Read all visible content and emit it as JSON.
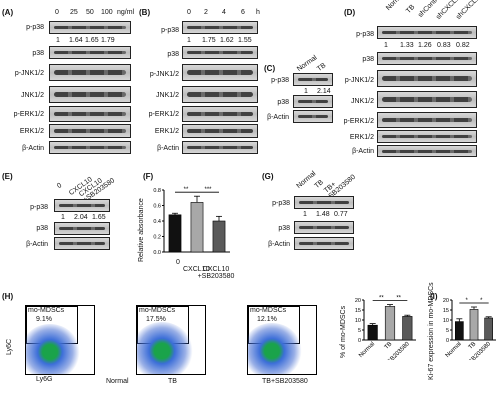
{
  "panels": {
    "A": {
      "label": "(A)",
      "columns": [
        "0",
        "25",
        "50",
        "100"
      ],
      "unit": "ng/ml",
      "rows": [
        "p-p38",
        "p38",
        "p-JNK1/2",
        "JNK1/2",
        "p-ERK1/2",
        "ERK1/2",
        "β-Actin"
      ],
      "ratios": [
        "1",
        "1.64",
        "1.65",
        "1.79"
      ]
    },
    "B": {
      "label": "(B)",
      "columns": [
        "0",
        "2",
        "4",
        "6"
      ],
      "unit": "h",
      "rows": [
        "p-p38",
        "p38",
        "p-JNK1/2",
        "JNK1/2",
        "p-ERK1/2",
        "ERK1/2",
        "β-Actin"
      ],
      "ratios": [
        "1",
        "1.75",
        "1.62",
        "1.55"
      ]
    },
    "C": {
      "label": "(C)",
      "columns": [
        "Normal",
        "TB"
      ],
      "rows": [
        "p-p38",
        "p38",
        "β-Actin"
      ],
      "ratios": [
        "1",
        "2.14"
      ]
    },
    "D": {
      "label": "(D)",
      "columns": [
        "Normal",
        "TB",
        "shControl",
        "shCXCL10-1",
        "shCXCL10-2"
      ],
      "rows": [
        "p-p38",
        "p38",
        "p-JNK1/2",
        "JNK1/2",
        "p-ERK1/2",
        "ERK1/2",
        "β-Actin"
      ],
      "ratios": [
        "1",
        "1.33",
        "1.26",
        "0.83",
        "0.82"
      ]
    },
    "E": {
      "label": "(E)",
      "columns": [
        "0",
        "CXCL10",
        "CXCL10 +SB203580"
      ],
      "rows": [
        "p-p38",
        "p38",
        "β-Actin"
      ],
      "ratios": [
        "1",
        "2.04",
        "1.65"
      ]
    },
    "F": {
      "label": "(F)",
      "ylabel": "Relative absorbance",
      "sig": [
        "**",
        "***"
      ]
    },
    "G": {
      "label": "(G)",
      "columns": [
        "Normal",
        "TB",
        "TB+ SB203580"
      ],
      "rows": [
        "p-p38",
        "p38",
        "β-Actin"
      ],
      "ratios": [
        "1",
        "1.48",
        "0.77"
      ]
    },
    "H": {
      "label": "(H)",
      "gate_name": "mo-MDSCs",
      "plots": [
        {
          "name": "Normal",
          "pct": "9.1%"
        },
        {
          "name": "TB",
          "pct": "17.5%"
        },
        {
          "name": "TB+SB203580",
          "pct": "12.1%"
        }
      ],
      "yaxis": "Ly6C",
      "xaxis": "Ly6G",
      "bar_ylabel": "% of mo-MDSCs",
      "sig": [
        "**",
        "**"
      ]
    },
    "I": {
      "label": "(I)",
      "ylabel": "Ki-67 expression in mo-MDSCs",
      "sig": [
        "*",
        "*"
      ]
    }
  },
  "chart_data": [
    {
      "type": "bar",
      "panel": "F",
      "categories": [
        "0",
        "CXCL10",
        "CXCL10 +SB203580"
      ],
      "values": [
        0.48,
        0.64,
        0.4
      ],
      "errors": [
        0.02,
        0.08,
        0.06
      ],
      "ylabel": "Relative absorbance",
      "ylim": [
        0,
        0.8
      ],
      "yticks": [
        "0.0",
        "0.2",
        "0.4",
        "0.6",
        "0.8"
      ],
      "colors": [
        "#111111",
        "#a8a8a8",
        "#5a5a5a"
      ]
    },
    {
      "type": "bar",
      "panel": "H",
      "categories": [
        "Normal",
        "TB",
        "TB+SB203580"
      ],
      "values": [
        7.4,
        16.8,
        11.8
      ],
      "errors": [
        0.8,
        0.9,
        0.6
      ],
      "ylabel": "% of mo-MDSCs",
      "ylim": [
        0,
        20
      ],
      "yticks": [
        "0",
        "5",
        "10",
        "15",
        "20"
      ],
      "colors": [
        "#111111",
        "#a8a8a8",
        "#5a5a5a"
      ]
    },
    {
      "type": "bar",
      "panel": "I",
      "categories": [
        "Normal",
        "TB",
        "TB+SB203580"
      ],
      "values": [
        9.2,
        15.3,
        11.0
      ],
      "errors": [
        1.4,
        1.2,
        0.6
      ],
      "ylabel": "Ki-67 expression in mo-MDSCs",
      "ylim": [
        0,
        20
      ],
      "yticks": [
        "0",
        "5",
        "10",
        "15",
        "20"
      ],
      "colors": [
        "#111111",
        "#a8a8a8",
        "#5a5a5a"
      ]
    }
  ]
}
